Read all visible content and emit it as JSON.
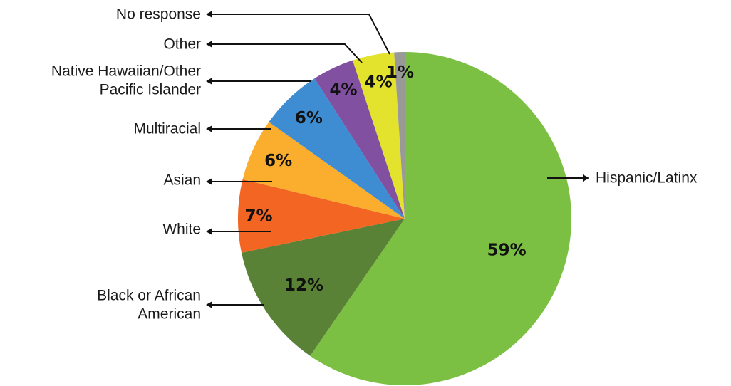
{
  "chart_data": {
    "type": "pie",
    "title": "",
    "start_angle_deg": 0,
    "direction": "clockwise",
    "slices": [
      {
        "label": "Hispanic/Latinx",
        "value": 59,
        "display": "59%",
        "color": "#7BC043"
      },
      {
        "label": "Black or African American",
        "value": 12,
        "display": "12%",
        "color": "#5A8237"
      },
      {
        "label": "White",
        "value": 7,
        "display": "7%",
        "color": "#F26522"
      },
      {
        "label": "Asian",
        "value": 6,
        "display": "6%",
        "color": "#FBAE2D"
      },
      {
        "label": "Multiracial",
        "value": 6,
        "display": "6%",
        "color": "#3E8DD3"
      },
      {
        "label": "Native Hawaiian/Other Pacific Islander",
        "value": 4,
        "display": "4%",
        "color": "#8250A0"
      },
      {
        "label": "Other",
        "value": 4,
        "display": "4%",
        "color": "#E3E32E"
      },
      {
        "label": "No response",
        "value": 1,
        "display": "1%",
        "color": "#999999"
      }
    ]
  }
}
